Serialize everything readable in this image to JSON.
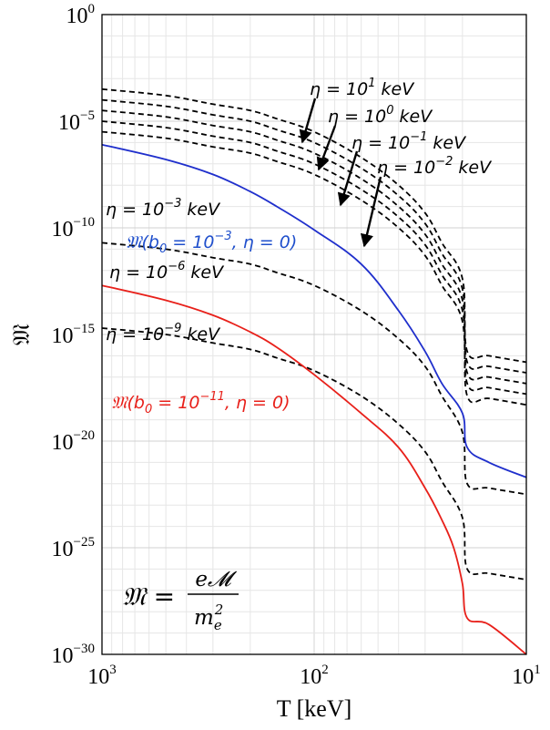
{
  "chart_data": {
    "type": "line",
    "xlabel": "T [keV]",
    "ylabel": "𝔐",
    "x_scale": "log",
    "y_scale": "log",
    "x_reversed": true,
    "xlim": [
      1000,
      10
    ],
    "ylim": [
      1e-30,
      1
    ],
    "grid": true,
    "x_ticks": [
      {
        "value": 1000,
        "label": "10",
        "exp": "3"
      },
      {
        "value": 100,
        "label": "10",
        "exp": "2"
      },
      {
        "value": 10,
        "label": "10",
        "exp": "1"
      }
    ],
    "y_ticks": [
      {
        "value": 1,
        "label": "10",
        "exp": "0"
      },
      {
        "value": 1e-05,
        "label": "10",
        "exp": "−5"
      },
      {
        "value": 1e-10,
        "label": "10",
        "exp": "−10"
      },
      {
        "value": 1e-15,
        "label": "10",
        "exp": "−15"
      },
      {
        "value": 1e-20,
        "label": "10",
        "exp": "−20"
      },
      {
        "value": 1e-25,
        "label": "10",
        "exp": "−25"
      },
      {
        "value": 1e-30,
        "label": "10",
        "exp": "−30"
      }
    ],
    "series": [
      {
        "style": "dashed",
        "color": "#000000",
        "label_ref": "eta_1e1",
        "x": [
          1000,
          500,
          300,
          200,
          150,
          100,
          60,
          40,
          30,
          25,
          20,
          19,
          15,
          10
        ],
        "y": [
          0.00032,
          0.00016,
          6.3e-05,
          3.2e-05,
          1.3e-05,
          3.2e-06,
          2e-07,
          1e-08,
          5e-10,
          2e-11,
          4e-13,
          1.6e-16,
          1e-16,
          5e-17
        ]
      },
      {
        "style": "dashed",
        "color": "#000000",
        "label_ref": "eta_1e0",
        "x": [
          1000,
          500,
          300,
          200,
          150,
          100,
          60,
          40,
          30,
          25,
          20,
          19,
          15,
          10
        ],
        "y": [
          0.0001,
          5e-05,
          2e-05,
          1e-05,
          4e-06,
          1e-06,
          6.3e-08,
          3.2e-09,
          1.6e-10,
          6.3e-12,
          1.3e-13,
          5e-17,
          3.2e-17,
          1.6e-17
        ]
      },
      {
        "style": "dashed",
        "color": "#000000",
        "label_ref": "eta_1em1",
        "x": [
          1000,
          500,
          300,
          200,
          150,
          100,
          60,
          40,
          30,
          25,
          20,
          19,
          15,
          10
        ],
        "y": [
          3.2e-05,
          1.6e-05,
          6.3e-06,
          3.2e-06,
          1.3e-06,
          3.2e-07,
          2e-08,
          1e-09,
          5e-11,
          2e-12,
          4e-14,
          1.6e-17,
          1e-17,
          5e-18
        ]
      },
      {
        "style": "dashed",
        "color": "#000000",
        "label_ref": "eta_1em2",
        "x": [
          1000,
          500,
          300,
          200,
          150,
          100,
          60,
          40,
          30,
          25,
          20,
          19,
          15,
          10
        ],
        "y": [
          1e-05,
          5e-06,
          2e-06,
          1e-06,
          4e-07,
          1e-07,
          6.3e-09,
          3.2e-10,
          1.6e-11,
          6.3e-13,
          1.3e-14,
          5e-18,
          3.2e-18,
          1.6e-18
        ]
      },
      {
        "style": "dashed",
        "color": "#000000",
        "label_ref": "eta_1em3",
        "x": [
          1000,
          500,
          300,
          200,
          150,
          100,
          60,
          40,
          30,
          25,
          20,
          19,
          15,
          10
        ],
        "y": [
          3.2e-06,
          1.6e-06,
          6.3e-07,
          3.2e-07,
          1.3e-07,
          3.2e-08,
          2e-09,
          1e-10,
          5e-12,
          2e-13,
          4e-15,
          1.3e-18,
          1e-18,
          5e-19
        ]
      },
      {
        "style": "dashed",
        "color": "#000000",
        "label_ref": "eta_1em6",
        "x": [
          1000,
          500,
          300,
          200,
          150,
          100,
          60,
          40,
          30,
          25,
          20,
          19,
          15,
          10
        ],
        "y": [
          2e-11,
          1e-11,
          4e-12,
          2e-12,
          8e-13,
          2e-13,
          1.3e-14,
          6.3e-16,
          3.2e-17,
          1.3e-18,
          2.5e-20,
          1e-22,
          6.3e-23,
          3.2e-23
        ]
      },
      {
        "style": "dashed",
        "color": "#000000",
        "label_ref": "eta_1em9",
        "x": [
          1000,
          500,
          300,
          200,
          150,
          100,
          60,
          40,
          30,
          25,
          20,
          19,
          15,
          10
        ],
        "y": [
          2e-15,
          1e-15,
          4e-16,
          2e-16,
          8e-17,
          2e-17,
          1.3e-18,
          6.3e-20,
          3.2e-21,
          1.3e-22,
          2.5e-24,
          1e-26,
          6.3e-27,
          3.2e-27
        ]
      },
      {
        "style": "solid",
        "color": "#1f2fcc",
        "label_ref": "blue_curve",
        "x": [
          1000,
          500,
          300,
          200,
          150,
          100,
          60,
          40,
          30,
          25,
          20,
          19,
          15,
          10
        ],
        "y": [
          8e-07,
          1.6e-07,
          3.2e-08,
          5e-09,
          1e-09,
          8e-11,
          2e-12,
          1.3e-14,
          1.6e-16,
          5e-18,
          2e-19,
          5e-21,
          1e-21,
          2e-22
        ]
      },
      {
        "style": "solid",
        "color": "#e8201a",
        "label_ref": "red_curve",
        "x": [
          1000,
          500,
          300,
          200,
          150,
          100,
          60,
          40,
          30,
          25,
          22,
          20,
          19,
          15,
          10
        ],
        "y": [
          2e-13,
          4e-14,
          8e-15,
          1.3e-15,
          2.5e-16,
          1.3e-17,
          2e-19,
          5e-21,
          6.3e-23,
          2e-24,
          1e-25,
          2e-27,
          5e-29,
          2.5e-29,
          1e-30
        ]
      }
    ],
    "annotations": {
      "eta_1e1": {
        "text": "η = 10",
        "sup": "1",
        "unit": " keV",
        "color": "#000000"
      },
      "eta_1e0": {
        "text": "η = 10",
        "sup": "0",
        "unit": " keV",
        "color": "#000000"
      },
      "eta_1em1": {
        "text": "η = 10",
        "sup": "−1",
        "unit": " keV",
        "color": "#000000"
      },
      "eta_1em2": {
        "text": "η = 10",
        "sup": "−2",
        "unit": " keV",
        "color": "#000000"
      },
      "eta_1em3": {
        "text": "η = 10",
        "sup": "−3",
        "unit": " keV",
        "color": "#000000"
      },
      "eta_1em6": {
        "text": "η = 10",
        "sup": "−6",
        "unit": " keV",
        "color": "#000000"
      },
      "eta_1em9": {
        "text": "η = 10",
        "sup": "−9",
        "unit": " keV",
        "color": "#000000"
      },
      "blue_curve": {
        "pre": "𝔐(b",
        "sub": "0",
        "mid": " = 10",
        "sup": "−3",
        "post": ", η = 0)",
        "color": "#1f4fcc"
      },
      "red_curve": {
        "pre": "𝔐(b",
        "sub": "0",
        "mid": " = 10",
        "sup": "−11",
        "post": ", η = 0)",
        "color": "#e8201a"
      }
    },
    "formula": {
      "lhs": "𝔐 = ",
      "num": "e𝓜",
      "den_base": "m",
      "den_sub": "e",
      "den_sup": "2"
    }
  }
}
